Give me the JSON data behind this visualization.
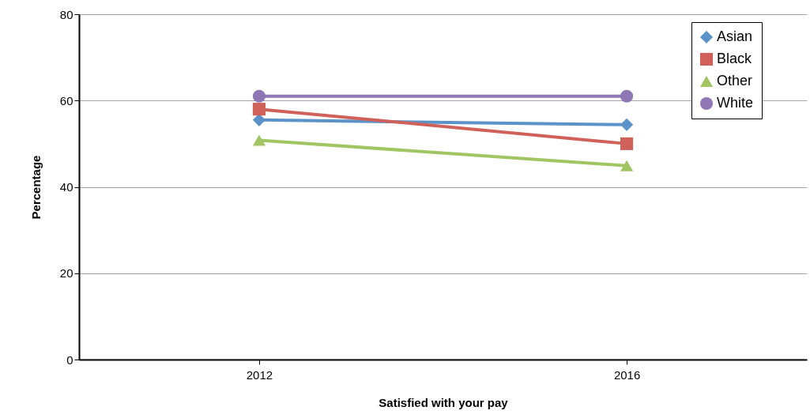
{
  "chart_data": {
    "type": "line",
    "xlabel": "Satisfied with your pay",
    "ylabel": "Percentage",
    "categories": [
      "2012",
      "2016"
    ],
    "series": [
      {
        "name": "Asian",
        "color": "#5b93c9",
        "marker": "diamond",
        "values": [
          55.5,
          54.4
        ]
      },
      {
        "name": "Black",
        "color": "#d0605a",
        "marker": "square",
        "values": [
          58,
          50
        ]
      },
      {
        "name": "Other",
        "color": "#a2c563",
        "marker": "triangle",
        "values": [
          50.8,
          44.9
        ]
      },
      {
        "name": "White",
        "color": "#8e77b4",
        "marker": "circle",
        "values": [
          61,
          61
        ]
      }
    ],
    "ylim": [
      0,
      80
    ],
    "yticks": [
      0,
      20,
      40,
      60,
      80
    ],
    "grid": "y",
    "legend": "top right"
  }
}
